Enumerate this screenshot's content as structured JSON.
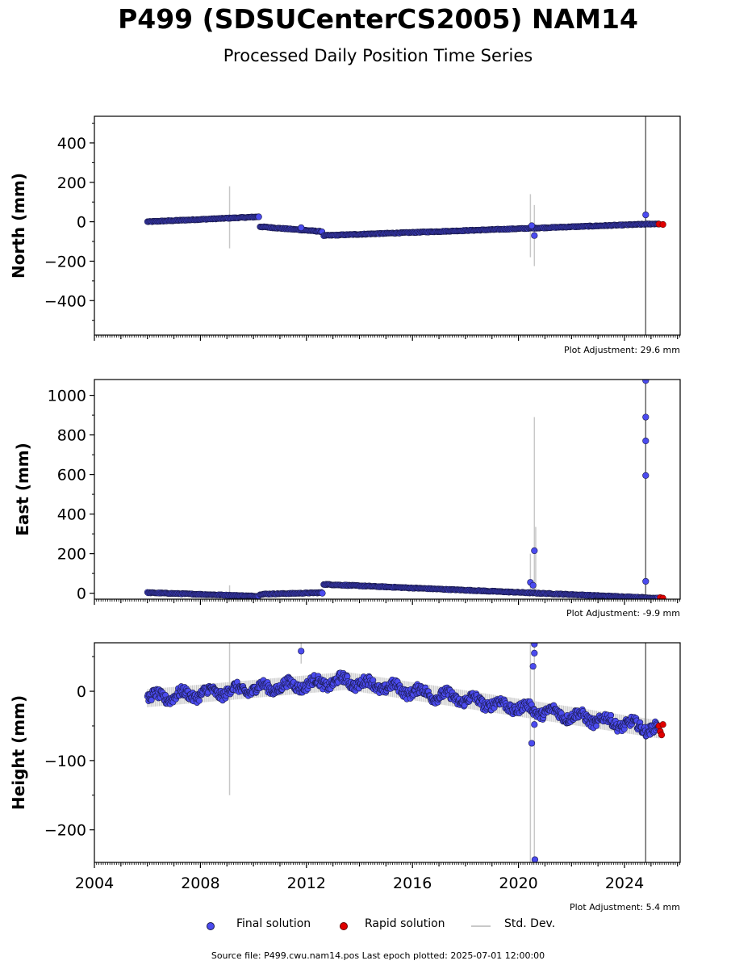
{
  "header": {
    "title": "P499 (SDSUCenterCS2005) NAM14",
    "subtitle": "Processed Daily Position Time Series"
  },
  "legend": {
    "final_label": "Final solution",
    "rapid_label": "Rapid solution",
    "std_label": "Std. Dev.",
    "final_color": "#4b4bef",
    "rapid_color": "#e00000",
    "std_color": "#c8c8c8"
  },
  "footer": {
    "text": "Source file: P499.cwu.nam14.pos  Last epoch plotted: 2025-07-01 12:00:00"
  },
  "chart_data": [
    {
      "type": "scatter",
      "ylabel": "North (mm)",
      "adjustment": "Plot Adjustment: 29.6 mm",
      "ylim": [
        -575,
        535
      ],
      "yticks": [
        400,
        200,
        0,
        -200,
        -400
      ],
      "ytick_labels": [
        "400",
        "200",
        "0",
        "−200",
        "−400"
      ],
      "xlim": [
        2004.0,
        2026.1
      ],
      "series": [
        {
          "kind": "final",
          "segments": [
            {
              "x0": 2006.0,
              "x1": 2010.2,
              "y0": 0,
              "y1": 25,
              "noise": 3
            },
            {
              "x0": 2010.25,
              "x1": 2012.6,
              "y0": -25,
              "y1": -50,
              "noise": 3
            },
            {
              "x0": 2012.65,
              "x1": 2025.3,
              "y0": -70,
              "y1": -10,
              "noise": 3
            }
          ],
          "points": [
            [
              2010.2,
              25
            ],
            [
              2011.8,
              -30
            ],
            [
              2020.5,
              -20
            ],
            [
              2020.6,
              -70
            ],
            [
              2024.8,
              35
            ]
          ]
        },
        {
          "kind": "rapid",
          "points": [
            [
              2025.3,
              -12
            ],
            [
              2025.45,
              -14
            ]
          ]
        }
      ],
      "std_bars": [
        {
          "x": 2009.1,
          "y0": -135,
          "y1": 180
        },
        {
          "x": 2020.45,
          "y0": -180,
          "y1": 140
        },
        {
          "x": 2020.6,
          "y0": -225,
          "y1": 85
        },
        {
          "x": 2024.8,
          "y0": -575,
          "y1": 535,
          "dark": true
        }
      ]
    },
    {
      "type": "scatter",
      "ylabel": "East (mm)",
      "adjustment": "Plot Adjustment: -9.9 mm",
      "ylim": [
        -30,
        1080
      ],
      "yticks": [
        1000,
        800,
        600,
        400,
        200,
        0
      ],
      "ytick_labels": [
        "1000",
        "800",
        "600",
        "400",
        "200",
        "0"
      ],
      "xlim": [
        2004.0,
        2026.1
      ],
      "series": [
        {
          "kind": "final",
          "segments": [
            {
              "x0": 2006.0,
              "x1": 2010.2,
              "y0": 3,
              "y1": -15,
              "noise": 3
            },
            {
              "x0": 2010.25,
              "x1": 2012.6,
              "y0": -5,
              "y1": 3,
              "noise": 3
            },
            {
              "x0": 2012.65,
              "x1": 2025.3,
              "y0": 45,
              "y1": -25,
              "noise": 3
            }
          ],
          "points": [
            [
              2012.6,
              0
            ],
            [
              2020.45,
              55
            ],
            [
              2020.55,
              40
            ],
            [
              2020.6,
              215
            ],
            [
              2024.8,
              60
            ],
            [
              2024.8,
              595
            ],
            [
              2024.8,
              770
            ],
            [
              2024.8,
              890
            ],
            [
              2024.8,
              1075
            ]
          ]
        },
        {
          "kind": "rapid",
          "points": [
            [
              2025.35,
              -22
            ],
            [
              2025.45,
              -25
            ]
          ]
        }
      ],
      "std_bars": [
        {
          "x": 2009.1,
          "y0": -15,
          "y1": 40
        },
        {
          "x": 2020.45,
          "y0": -15,
          "y1": 200
        },
        {
          "x": 2020.6,
          "y0": -15,
          "y1": 890
        },
        {
          "x": 2020.65,
          "y0": -15,
          "y1": 335
        },
        {
          "x": 2024.8,
          "y0": -30,
          "y1": 1080,
          "dark": true
        }
      ]
    },
    {
      "type": "scatter",
      "ylabel": "Height (mm)",
      "adjustment": "Plot Adjustment: 5.4 mm",
      "ylim": [
        -247,
        70
      ],
      "yticks": [
        0,
        -100,
        -200
      ],
      "ytick_labels": [
        "0",
        "−100",
        "−200"
      ],
      "xlim": [
        2004.0,
        2026.1
      ],
      "xticks": [
        2004,
        2008,
        2012,
        2016,
        2020,
        2024
      ],
      "xtick_labels": [
        "2004",
        "2008",
        "2012",
        "2016",
        "2020",
        "2024"
      ],
      "series": [
        {
          "kind": "final",
          "segments": [
            {
              "x0": 2006.0,
              "x1": 2013.5,
              "y0": -10,
              "y1": 15,
              "noise": 10
            },
            {
              "x0": 2013.5,
              "x1": 2025.3,
              "y0": 15,
              "y1": -55,
              "noise": 10
            }
          ],
          "points": [
            [
              2011.8,
              58
            ],
            [
              2020.5,
              -75
            ],
            [
              2020.55,
              36
            ],
            [
              2020.6,
              55
            ],
            [
              2020.6,
              68
            ],
            [
              2020.6,
              -48
            ],
            [
              2020.62,
              -243
            ]
          ]
        },
        {
          "kind": "rapid",
          "points": [
            [
              2025.3,
              -50
            ],
            [
              2025.35,
              -58
            ],
            [
              2025.4,
              -63
            ],
            [
              2025.45,
              -48
            ]
          ]
        }
      ],
      "std_bars": [
        {
          "x": 2009.1,
          "y0": -150,
          "y1": 70
        },
        {
          "x": 2011.8,
          "y0": 40,
          "y1": 70
        },
        {
          "x": 2020.45,
          "y0": -247,
          "y1": 70
        },
        {
          "x": 2020.6,
          "y0": -247,
          "y1": 70
        },
        {
          "x": 2024.8,
          "y0": -247,
          "y1": 70,
          "dark": true
        }
      ]
    }
  ]
}
